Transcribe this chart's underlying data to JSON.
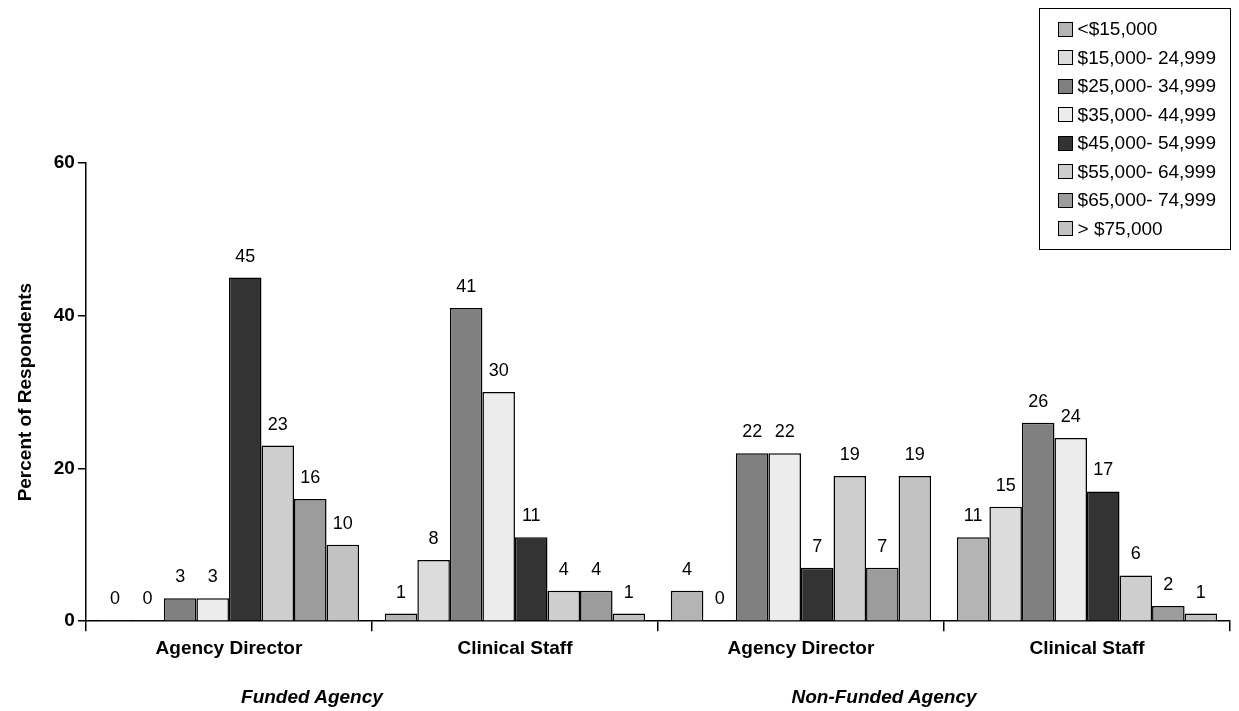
{
  "chart_data": {
    "type": "bar",
    "ylabel": "Percent of Respondents",
    "categories": [
      "Agency Director",
      "Clinical Staff",
      "Agency Director",
      "Clinical Staff"
    ],
    "series": [
      {
        "name": "<$15,000",
        "color": "#b4b4b4",
        "values": [
          0,
          1,
          4,
          11
        ]
      },
      {
        "name": "$15,000- 24,999",
        "color": "#dcdcdc",
        "values": [
          0,
          8,
          0,
          15
        ]
      },
      {
        "name": "$25,000- 34,999",
        "color": "#808080",
        "values": [
          3,
          41,
          22,
          26
        ]
      },
      {
        "name": "$35,000- 44,999",
        "color": "#ececec",
        "values": [
          3,
          30,
          22,
          24
        ]
      },
      {
        "name": "$45,000- 54,999",
        "color": "#333333",
        "values": [
          45,
          11,
          7,
          17
        ]
      },
      {
        "name": "$55,000- 64,999",
        "color": "#cecece",
        "values": [
          23,
          4,
          19,
          6
        ]
      },
      {
        "name": "$65,000- 74,999",
        "color": "#9c9c9c",
        "values": [
          16,
          4,
          7,
          2
        ]
      },
      {
        "name": "> $75,000",
        "color": "#c2c2c2",
        "values": [
          10,
          1,
          19,
          1
        ]
      }
    ],
    "ylim": [
      0,
      60
    ],
    "yticks": [
      0,
      20,
      40,
      60
    ],
    "grid": false,
    "legend": "top right",
    "data_labels": true,
    "annotations": [
      "Funded Agency",
      "Non-Funded Agency"
    ]
  }
}
